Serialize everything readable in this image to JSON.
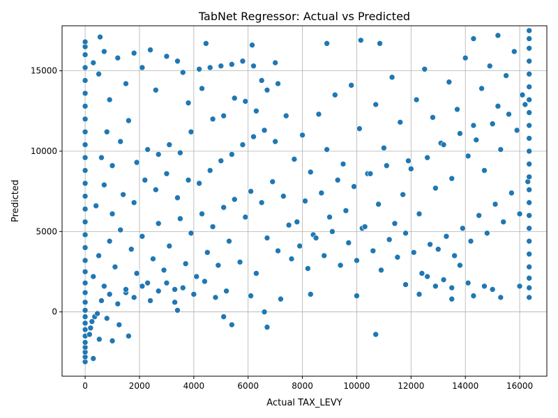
{
  "chart_data": {
    "type": "scatter",
    "title": "TabNet Regressor: Actual vs Predicted",
    "xlabel": "Actual TAX_LEVY",
    "ylabel": "Predicted",
    "xlim": [
      -850,
      17000
    ],
    "ylim": [
      -4000,
      17800
    ],
    "xticks": [
      0,
      2000,
      4000,
      6000,
      8000,
      10000,
      12000,
      14000,
      16000
    ],
    "yticks": [
      0,
      5000,
      10000,
      15000
    ],
    "grid": true,
    "point_color": "#1f77b4",
    "points": [
      [
        0,
        -3100
      ],
      [
        0,
        -2800
      ],
      [
        0,
        -2500
      ],
      [
        0,
        -2200
      ],
      [
        0,
        -1900
      ],
      [
        0,
        -1500
      ],
      [
        0,
        -1100
      ],
      [
        0,
        -700
      ],
      [
        0,
        -300
      ],
      [
        0,
        100
      ],
      [
        0,
        600
      ],
      [
        0,
        1200
      ],
      [
        0,
        1800
      ],
      [
        0,
        2500
      ],
      [
        0,
        3200
      ],
      [
        0,
        4000
      ],
      [
        0,
        4800
      ],
      [
        0,
        5600
      ],
      [
        0,
        6400
      ],
      [
        0,
        7200
      ],
      [
        0,
        8000
      ],
      [
        0,
        8800
      ],
      [
        0,
        9600
      ],
      [
        0,
        10400
      ],
      [
        0,
        11200
      ],
      [
        0,
        12000
      ],
      [
        0,
        12800
      ],
      [
        0,
        13600
      ],
      [
        0,
        14400
      ],
      [
        0,
        15200
      ],
      [
        0,
        16000
      ],
      [
        0,
        16500
      ],
      [
        0,
        16800
      ],
      [
        160,
        -1400
      ],
      [
        200,
        -1000
      ],
      [
        250,
        -600
      ],
      [
        300,
        -2900
      ],
      [
        350,
        -300
      ],
      [
        450,
        -100
      ],
      [
        520,
        -1700
      ],
      [
        800,
        -400
      ],
      [
        1000,
        -1800
      ],
      [
        1250,
        -800
      ],
      [
        1600,
        -1500
      ],
      [
        5100,
        -300
      ],
      [
        5400,
        -800
      ],
      [
        6700,
        -950
      ],
      [
        6600,
        0
      ],
      [
        10700,
        -1400
      ],
      [
        10000,
        1000
      ],
      [
        550,
        17100
      ],
      [
        4450,
        16700
      ],
      [
        8900,
        16700
      ],
      [
        10150,
        16900
      ],
      [
        10850,
        16700
      ],
      [
        6150,
        16600
      ],
      [
        14300,
        17000
      ],
      [
        15200,
        17200
      ],
      [
        300,
        15500
      ],
      [
        500,
        14800
      ],
      [
        700,
        16200
      ],
      [
        900,
        13200
      ],
      [
        1200,
        15800
      ],
      [
        1500,
        14200
      ],
      [
        1800,
        16100
      ],
      [
        2100,
        15200
      ],
      [
        2400,
        16300
      ],
      [
        2600,
        13800
      ],
      [
        3000,
        15900
      ],
      [
        3400,
        15600
      ],
      [
        3600,
        14900
      ],
      [
        3800,
        13000
      ],
      [
        4200,
        15100
      ],
      [
        4600,
        15200
      ],
      [
        5000,
        15300
      ],
      [
        5400,
        15400
      ],
      [
        5800,
        15600
      ],
      [
        6200,
        15300
      ],
      [
        6500,
        14400
      ],
      [
        7000,
        15500
      ],
      [
        600,
        9600
      ],
      [
        800,
        11200
      ],
      [
        1000,
        9100
      ],
      [
        1300,
        10600
      ],
      [
        1600,
        11900
      ],
      [
        1900,
        9300
      ],
      [
        2300,
        10100
      ],
      [
        2700,
        9800
      ],
      [
        3100,
        10400
      ],
      [
        3500,
        9900
      ],
      [
        3900,
        11200
      ],
      [
        4300,
        13900
      ],
      [
        4700,
        12000
      ],
      [
        5100,
        12200
      ],
      [
        5500,
        13300
      ],
      [
        5900,
        13100
      ],
      [
        6300,
        12500
      ],
      [
        6700,
        13800
      ],
      [
        7100,
        14200
      ],
      [
        400,
        6600
      ],
      [
        700,
        7900
      ],
      [
        1000,
        6100
      ],
      [
        1400,
        7300
      ],
      [
        1800,
        6800
      ],
      [
        2200,
        8200
      ],
      [
        2600,
        7600
      ],
      [
        3000,
        8600
      ],
      [
        3400,
        7100
      ],
      [
        3800,
        8200
      ],
      [
        4200,
        8000
      ],
      [
        4600,
        8800
      ],
      [
        5000,
        9400
      ],
      [
        5400,
        9800
      ],
      [
        5800,
        10400
      ],
      [
        6200,
        10900
      ],
      [
        6600,
        11300
      ],
      [
        7000,
        10600
      ],
      [
        7400,
        12200
      ],
      [
        300,
        2200
      ],
      [
        500,
        3500
      ],
      [
        700,
        1600
      ],
      [
        900,
        4400
      ],
      [
        1100,
        2800
      ],
      [
        1300,
        5100
      ],
      [
        1500,
        1200
      ],
      [
        1700,
        3900
      ],
      [
        1900,
        2400
      ],
      [
        2100,
        4700
      ],
      [
        2300,
        1800
      ],
      [
        2500,
        3300
      ],
      [
        2700,
        5500
      ],
      [
        2900,
        2600
      ],
      [
        3100,
        4100
      ],
      [
        3300,
        1400
      ],
      [
        3500,
        5800
      ],
      [
        3700,
        3000
      ],
      [
        3900,
        4900
      ],
      [
        4100,
        2200
      ],
      [
        4300,
        6100
      ],
      [
        4500,
        3700
      ],
      [
        4700,
        5300
      ],
      [
        4900,
        2900
      ],
      [
        5100,
        6500
      ],
      [
        5300,
        4400
      ],
      [
        5500,
        7000
      ],
      [
        5700,
        3100
      ],
      [
        5900,
        5900
      ],
      [
        6100,
        7500
      ],
      [
        6300,
        2400
      ],
      [
        6500,
        6800
      ],
      [
        6700,
        4600
      ],
      [
        6900,
        8100
      ],
      [
        7100,
        3800
      ],
      [
        7300,
        7200
      ],
      [
        7500,
        5400
      ],
      [
        600,
        700
      ],
      [
        900,
        1100
      ],
      [
        1200,
        500
      ],
      [
        1500,
        1400
      ],
      [
        1800,
        900
      ],
      [
        2100,
        1600
      ],
      [
        2400,
        700
      ],
      [
        2700,
        1300
      ],
      [
        3000,
        1800
      ],
      [
        3300,
        600
      ],
      [
        3400,
        100
      ],
      [
        3600,
        1500
      ],
      [
        4000,
        1100
      ],
      [
        4400,
        1900
      ],
      [
        4800,
        900
      ],
      [
        5200,
        1300
      ],
      [
        6100,
        1000
      ],
      [
        7200,
        800
      ],
      [
        8300,
        1100
      ],
      [
        7700,
        9500
      ],
      [
        8000,
        11000
      ],
      [
        8300,
        8700
      ],
      [
        8600,
        12300
      ],
      [
        8900,
        10100
      ],
      [
        9200,
        13500
      ],
      [
        9500,
        9200
      ],
      [
        9800,
        14100
      ],
      [
        10100,
        11400
      ],
      [
        10400,
        8600
      ],
      [
        10700,
        12900
      ],
      [
        11000,
        10200
      ],
      [
        11300,
        14600
      ],
      [
        11600,
        11800
      ],
      [
        11900,
        9400
      ],
      [
        12200,
        13200
      ],
      [
        12500,
        15100
      ],
      [
        12800,
        12100
      ],
      [
        13100,
        10500
      ],
      [
        13400,
        14300
      ],
      [
        13700,
        12600
      ],
      [
        14000,
        15800
      ],
      [
        14300,
        11600
      ],
      [
        14600,
        13900
      ],
      [
        14900,
        15300
      ],
      [
        15200,
        12800
      ],
      [
        15500,
        14700
      ],
      [
        15800,
        16200
      ],
      [
        16100,
        13500
      ],
      [
        7800,
        5600
      ],
      [
        8100,
        6900
      ],
      [
        8400,
        4800
      ],
      [
        8700,
        7400
      ],
      [
        9000,
        5900
      ],
      [
        9300,
        8200
      ],
      [
        9600,
        6300
      ],
      [
        9900,
        7800
      ],
      [
        10200,
        5200
      ],
      [
        10500,
        8600
      ],
      [
        10800,
        6700
      ],
      [
        11100,
        9100
      ],
      [
        11400,
        5500
      ],
      [
        11700,
        7300
      ],
      [
        12000,
        8900
      ],
      [
        12300,
        6100
      ],
      [
        12600,
        9600
      ],
      [
        12900,
        7700
      ],
      [
        13200,
        10400
      ],
      [
        13500,
        8300
      ],
      [
        13800,
        11100
      ],
      [
        14100,
        9700
      ],
      [
        14400,
        10700
      ],
      [
        14700,
        8800
      ],
      [
        15000,
        11700
      ],
      [
        15300,
        10100
      ],
      [
        15600,
        12300
      ],
      [
        15900,
        11300
      ],
      [
        16200,
        12900
      ],
      [
        7600,
        3300
      ],
      [
        7900,
        4100
      ],
      [
        8200,
        2700
      ],
      [
        8500,
        4600
      ],
      [
        8800,
        3500
      ],
      [
        9100,
        5000
      ],
      [
        9400,
        2900
      ],
      [
        9700,
        4300
      ],
      [
        10000,
        3200
      ],
      [
        10300,
        5300
      ],
      [
        10600,
        3800
      ],
      [
        10900,
        2600
      ],
      [
        11200,
        4500
      ],
      [
        11500,
        3400
      ],
      [
        11800,
        4900
      ],
      [
        12100,
        3700
      ],
      [
        12400,
        2400
      ],
      [
        12700,
        4200
      ],
      [
        13000,
        3900
      ],
      [
        13300,
        4700
      ],
      [
        13600,
        3500
      ],
      [
        13900,
        5200
      ],
      [
        14200,
        4400
      ],
      [
        14500,
        6000
      ],
      [
        14800,
        4900
      ],
      [
        15100,
        6700
      ],
      [
        15400,
        5600
      ],
      [
        15700,
        7400
      ],
      [
        16000,
        6100
      ],
      [
        16300,
        8100
      ],
      [
        11800,
        1700
      ],
      [
        12300,
        1100
      ],
      [
        12600,
        2200
      ],
      [
        12900,
        1600
      ],
      [
        13200,
        2000
      ],
      [
        13500,
        800
      ],
      [
        13500,
        1500
      ],
      [
        13800,
        2900
      ],
      [
        14100,
        1800
      ],
      [
        14300,
        1000
      ],
      [
        14700,
        1600
      ],
      [
        15000,
        1400
      ],
      [
        15300,
        900
      ],
      [
        16000,
        1600
      ],
      [
        16350,
        900
      ],
      [
        16350,
        1500
      ],
      [
        16350,
        2100
      ],
      [
        16350,
        2800
      ],
      [
        16350,
        3600
      ],
      [
        16350,
        4400
      ],
      [
        16350,
        5200
      ],
      [
        16350,
        6000
      ],
      [
        16350,
        6800
      ],
      [
        16350,
        7600
      ],
      [
        16350,
        8400
      ],
      [
        16350,
        9200
      ],
      [
        16350,
        10000
      ],
      [
        16350,
        10800
      ],
      [
        16350,
        11600
      ],
      [
        16350,
        12400
      ],
      [
        16350,
        13200
      ],
      [
        16350,
        14000
      ],
      [
        16350,
        14800
      ],
      [
        16350,
        15600
      ],
      [
        16350,
        16400
      ],
      [
        16350,
        17000
      ],
      [
        16350,
        17500
      ]
    ]
  }
}
